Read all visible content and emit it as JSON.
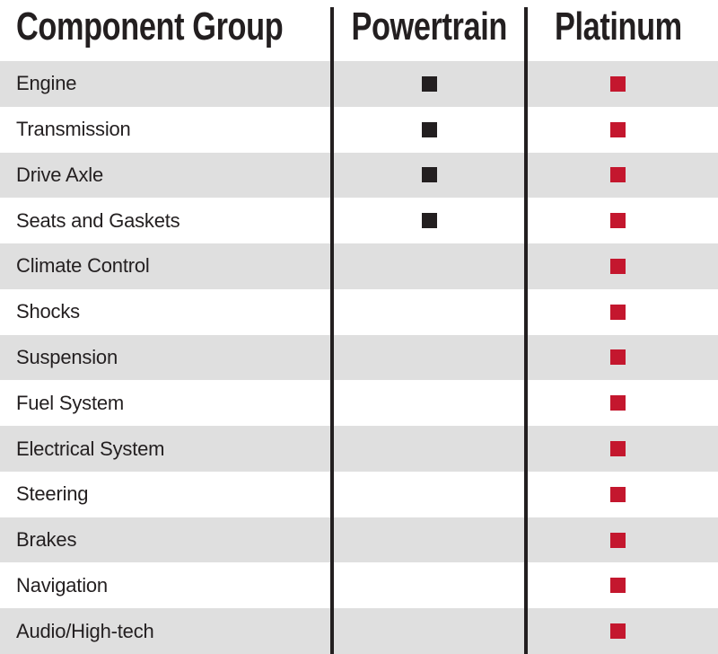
{
  "chart_data": {
    "type": "table",
    "columns": [
      "Component Group",
      "Powertrain",
      "Platinum"
    ],
    "rows": [
      {
        "component": "Engine",
        "powertrain": true,
        "platinum": true
      },
      {
        "component": "Transmission",
        "powertrain": true,
        "platinum": true
      },
      {
        "component": "Drive Axle",
        "powertrain": true,
        "platinum": true
      },
      {
        "component": "Seats and Gaskets",
        "powertrain": true,
        "platinum": true
      },
      {
        "component": "Climate Control",
        "powertrain": false,
        "platinum": true
      },
      {
        "component": "Shocks",
        "powertrain": false,
        "platinum": true
      },
      {
        "component": "Suspension",
        "powertrain": false,
        "platinum": true
      },
      {
        "component": "Fuel System",
        "powertrain": false,
        "platinum": true
      },
      {
        "component": "Electrical System",
        "powertrain": false,
        "platinum": true
      },
      {
        "component": "Steering",
        "powertrain": false,
        "platinum": true
      },
      {
        "component": "Brakes",
        "powertrain": false,
        "platinum": true
      },
      {
        "component": "Navigation",
        "powertrain": false,
        "platinum": true
      },
      {
        "component": "Audio/High-tech",
        "powertrain": false,
        "platinum": true
      }
    ],
    "marker": "filled-square",
    "legend_position": "none",
    "grid": "zebra-rows",
    "colors": {
      "powertrain_square": "#231f20",
      "platinum_square": "#c4172e",
      "row_alt_background": "#dfdfdf",
      "text": "#231f20",
      "divider": "#231f20"
    }
  }
}
